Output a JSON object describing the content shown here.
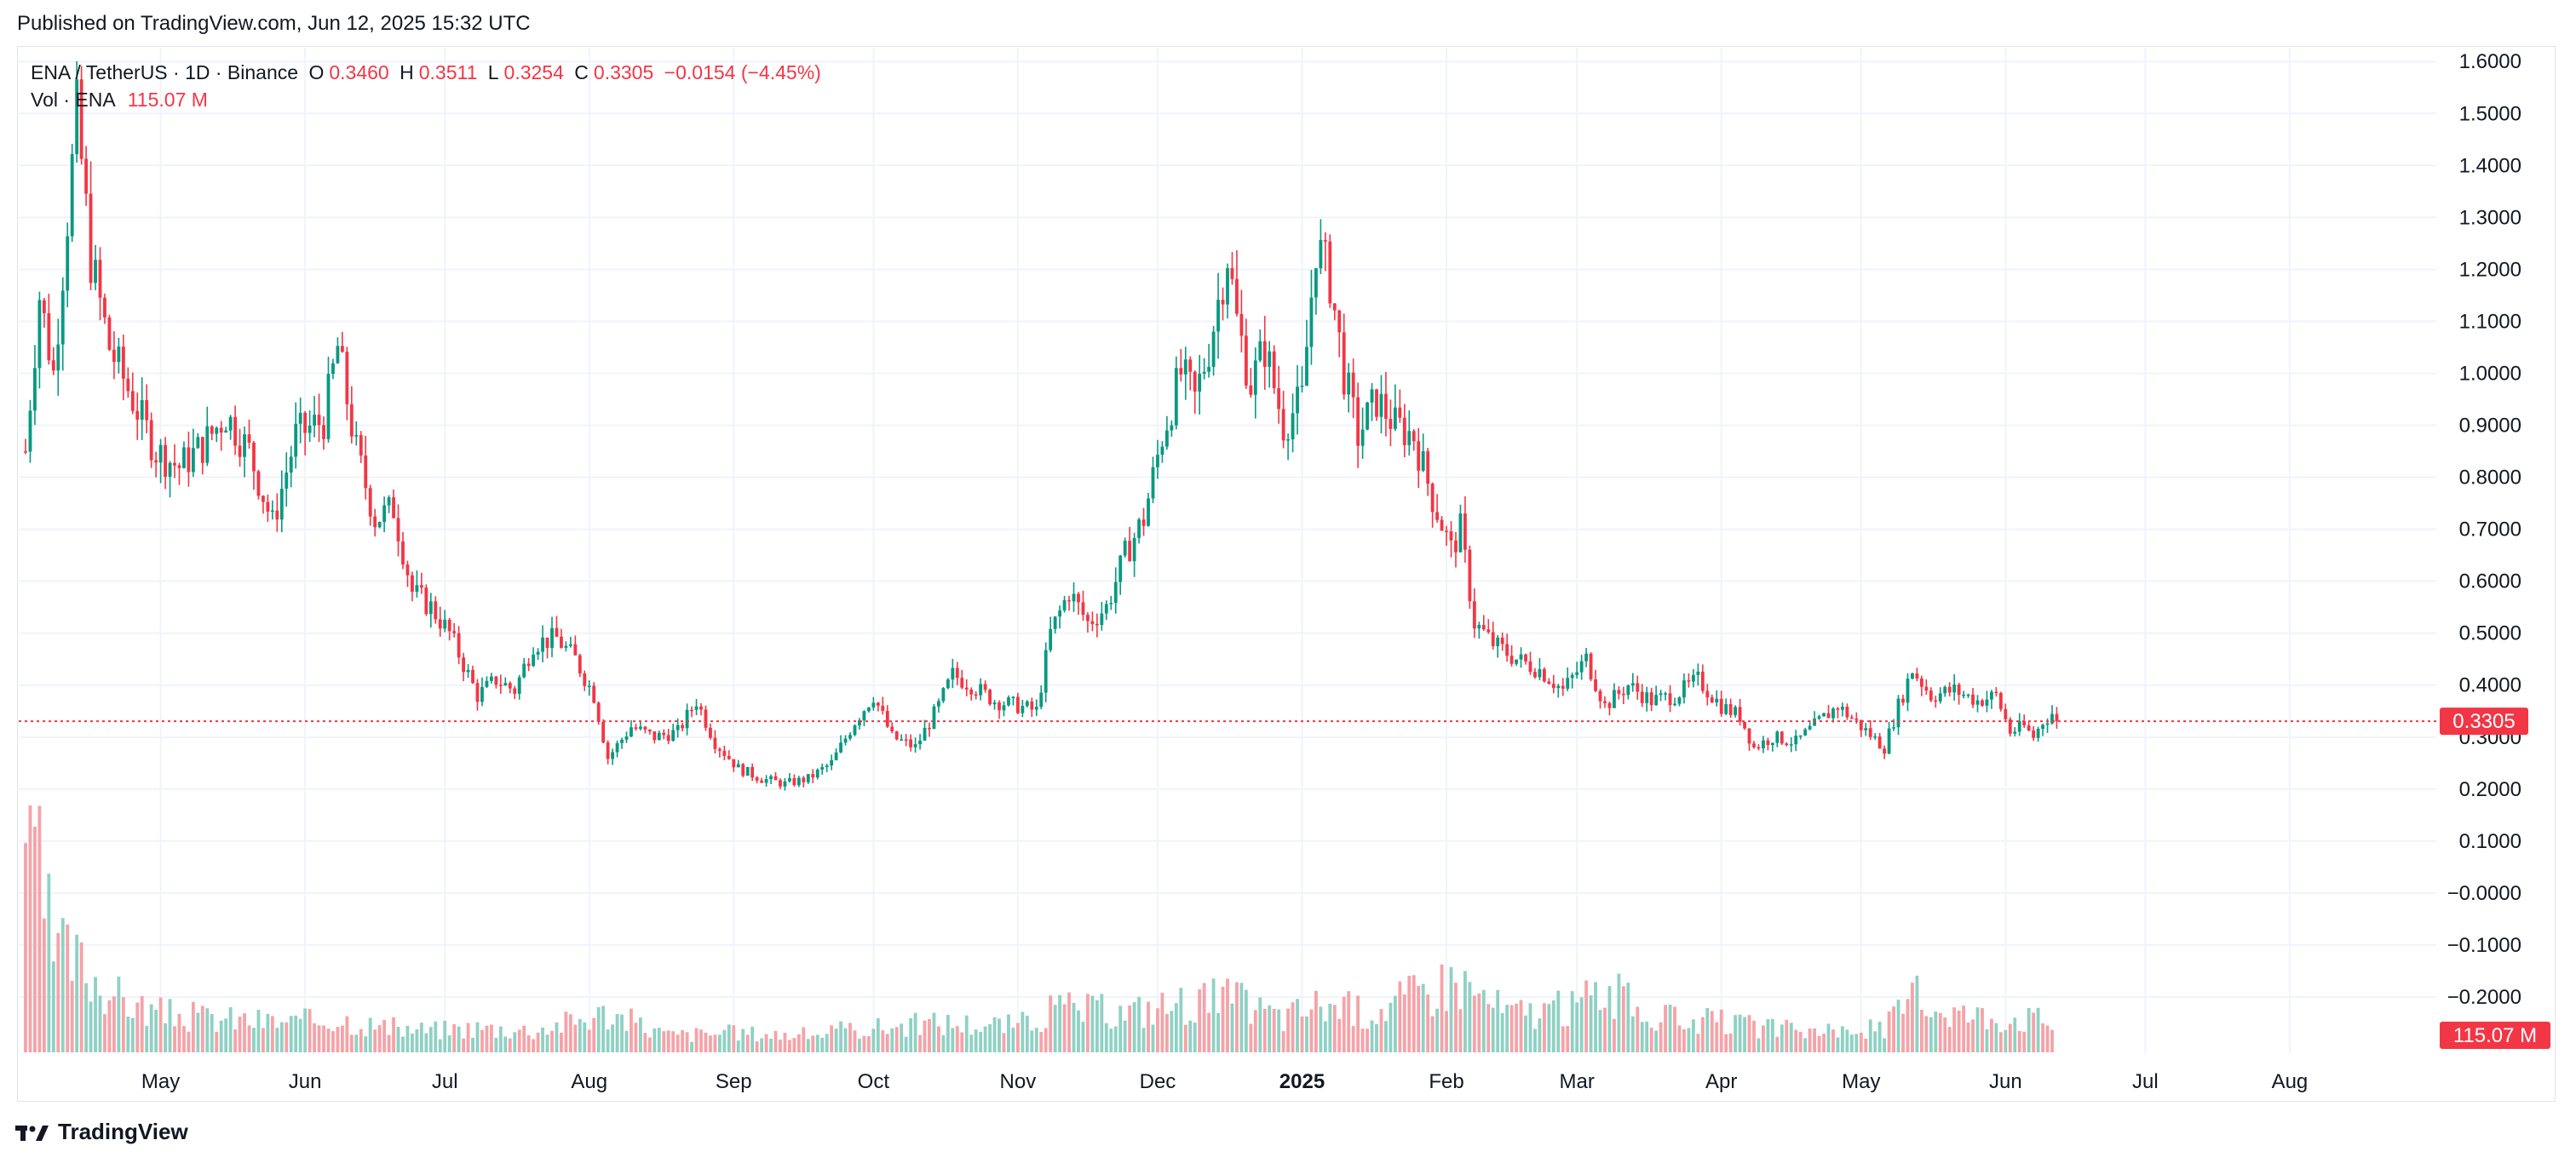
{
  "header": {
    "published": "Published on TradingView.com, Jun 12, 2025 15:32 UTC"
  },
  "legend": {
    "symbol": "ENA / TetherUS · 1D · Binance",
    "o_label": "O",
    "o_value": "0.3460",
    "h_label": "H",
    "h_value": "0.3511",
    "l_label": "L",
    "l_value": "0.3254",
    "c_label": "C",
    "c_value": "0.3305",
    "change": "−0.0154 (−4.45%)",
    "vol_label": "Vol · ENA",
    "vol_value": "115.07 M"
  },
  "brand": {
    "name": "TradingView",
    "logo_icon": "tradingview-logo-icon"
  },
  "colors": {
    "up": "#089981",
    "down": "#f23645",
    "grid": "#f0f3fa",
    "text": "#131722"
  },
  "chart_data": {
    "type": "candlestick",
    "symbol": "ENA / TetherUS",
    "interval": "1D",
    "exchange": "Binance",
    "last_price": 0.3305,
    "last_price_label": "0.3305",
    "last_volume_label": "115.07 M",
    "y_ticks": [
      "1.6000",
      "1.5000",
      "1.4000",
      "1.3000",
      "1.2000",
      "1.1000",
      "1.0000",
      "0.9000",
      "0.8000",
      "0.7000",
      "0.6000",
      "0.5000",
      "0.4000",
      "0.3000",
      "0.2000",
      "0.1000",
      "−0.0000",
      "−0.1000",
      "−0.2000"
    ],
    "y_tick_values": [
      1.6,
      1.5,
      1.4,
      1.3,
      1.2,
      1.1,
      1.0,
      0.9,
      0.8,
      0.7,
      0.6,
      0.5,
      0.4,
      0.3,
      0.2,
      0.1,
      0.0,
      -0.1,
      -0.2
    ],
    "x_ticks": [
      "May",
      "Jun",
      "Jul",
      "Aug",
      "Sep",
      "Oct",
      "Nov",
      "Dec",
      "2025",
      "Feb",
      "Mar",
      "Apr",
      "May",
      "Jun",
      "Jul",
      "Aug"
    ],
    "x_tick_dates": [
      "2024-05-01",
      "2024-06-01",
      "2024-07-01",
      "2024-08-01",
      "2024-09-01",
      "2024-10-01",
      "2024-11-01",
      "2024-12-01",
      "2025-01-01",
      "2025-02-01",
      "2025-03-01",
      "2025-04-01",
      "2025-05-01",
      "2025-06-01",
      "2025-07-01",
      "2025-08-01"
    ],
    "x_range": [
      "2024-04-02",
      "2025-08-31"
    ],
    "y_range": [
      -0.3,
      1.62
    ],
    "close_series": [
      [
        "2024-04-02",
        0.85
      ],
      [
        "2024-04-05",
        1.15
      ],
      [
        "2024-04-08",
        1.0
      ],
      [
        "2024-04-11",
        1.3
      ],
      [
        "2024-04-13",
        1.5
      ],
      [
        "2024-04-16",
        1.22
      ],
      [
        "2024-04-20",
        1.05
      ],
      [
        "2024-04-25",
        0.95
      ],
      [
        "2024-04-30",
        0.85
      ],
      [
        "2024-05-05",
        0.82
      ],
      [
        "2024-05-10",
        0.86
      ],
      [
        "2024-05-15",
        0.92
      ],
      [
        "2024-05-20",
        0.85
      ],
      [
        "2024-05-25",
        0.71
      ],
      [
        "2024-05-30",
        0.88
      ],
      [
        "2024-06-05",
        0.91
      ],
      [
        "2024-06-08",
        1.05
      ],
      [
        "2024-06-12",
        0.85
      ],
      [
        "2024-06-16",
        0.72
      ],
      [
        "2024-06-20",
        0.74
      ],
      [
        "2024-06-24",
        0.58
      ],
      [
        "2024-06-28",
        0.55
      ],
      [
        "2024-07-02",
        0.5
      ],
      [
        "2024-07-05",
        0.44
      ],
      [
        "2024-07-08",
        0.38
      ],
      [
        "2024-07-12",
        0.41
      ],
      [
        "2024-07-16",
        0.39
      ],
      [
        "2024-07-20",
        0.48
      ],
      [
        "2024-07-25",
        0.49
      ],
      [
        "2024-07-29",
        0.45
      ],
      [
        "2024-08-02",
        0.38
      ],
      [
        "2024-08-05",
        0.26
      ],
      [
        "2024-08-10",
        0.32
      ],
      [
        "2024-08-15",
        0.3
      ],
      [
        "2024-08-20",
        0.31
      ],
      [
        "2024-08-24",
        0.37
      ],
      [
        "2024-08-28",
        0.29
      ],
      [
        "2024-09-02",
        0.24
      ],
      [
        "2024-09-07",
        0.22
      ],
      [
        "2024-09-12",
        0.21
      ],
      [
        "2024-09-17",
        0.22
      ],
      [
        "2024-09-22",
        0.25
      ],
      [
        "2024-09-27",
        0.33
      ],
      [
        "2024-10-01",
        0.38
      ],
      [
        "2024-10-05",
        0.3
      ],
      [
        "2024-10-10",
        0.28
      ],
      [
        "2024-10-15",
        0.36
      ],
      [
        "2024-10-18",
        0.42
      ],
      [
        "2024-10-22",
        0.4
      ],
      [
        "2024-10-27",
        0.37
      ],
      [
        "2024-11-01",
        0.36
      ],
      [
        "2024-11-05",
        0.35
      ],
      [
        "2024-11-08",
        0.5
      ],
      [
        "2024-11-12",
        0.58
      ],
      [
        "2024-11-16",
        0.52
      ],
      [
        "2024-11-20",
        0.55
      ],
      [
        "2024-11-24",
        0.65
      ],
      [
        "2024-11-28",
        0.72
      ],
      [
        "2024-12-02",
        0.88
      ],
      [
        "2024-12-06",
        1.0
      ],
      [
        "2024-12-09",
        0.95
      ],
      [
        "2024-12-12",
        1.05
      ],
      [
        "2024-12-16",
        1.23
      ],
      [
        "2024-12-18",
        1.1
      ],
      [
        "2024-12-21",
        0.98
      ],
      [
        "2024-12-24",
        1.05
      ],
      [
        "2024-12-28",
        0.9
      ],
      [
        "2025-01-01",
        0.95
      ],
      [
        "2025-01-04",
        1.25
      ],
      [
        "2025-01-07",
        1.18
      ],
      [
        "2025-01-10",
        1.0
      ],
      [
        "2025-01-13",
        0.88
      ],
      [
        "2025-01-17",
        0.95
      ],
      [
        "2025-01-21",
        0.9
      ],
      [
        "2025-01-25",
        0.88
      ],
      [
        "2025-01-29",
        0.76
      ],
      [
        "2025-02-02",
        0.66
      ],
      [
        "2025-02-04",
        0.7
      ],
      [
        "2025-02-07",
        0.52
      ],
      [
        "2025-02-11",
        0.48
      ],
      [
        "2025-02-16",
        0.45
      ],
      [
        "2025-02-21",
        0.43
      ],
      [
        "2025-02-26",
        0.39
      ],
      [
        "2025-03-03",
        0.45
      ],
      [
        "2025-03-07",
        0.36
      ],
      [
        "2025-03-12",
        0.4
      ],
      [
        "2025-03-17",
        0.37
      ],
      [
        "2025-03-22",
        0.38
      ],
      [
        "2025-03-27",
        0.41
      ],
      [
        "2025-04-01",
        0.36
      ],
      [
        "2025-04-05",
        0.34
      ],
      [
        "2025-04-08",
        0.28
      ],
      [
        "2025-04-12",
        0.3
      ],
      [
        "2025-04-17",
        0.29
      ],
      [
        "2025-04-22",
        0.33
      ],
      [
        "2025-04-26",
        0.36
      ],
      [
        "2025-05-01",
        0.32
      ],
      [
        "2025-05-06",
        0.28
      ],
      [
        "2025-05-09",
        0.36
      ],
      [
        "2025-05-12",
        0.43
      ],
      [
        "2025-05-16",
        0.38
      ],
      [
        "2025-05-21",
        0.39
      ],
      [
        "2025-05-26",
        0.37
      ],
      [
        "2025-05-30",
        0.38
      ],
      [
        "2025-06-02",
        0.31
      ],
      [
        "2025-06-05",
        0.32
      ],
      [
        "2025-06-07",
        0.3
      ],
      [
        "2025-06-09",
        0.33
      ],
      [
        "2025-06-11",
        0.346
      ],
      [
        "2025-06-12",
        0.3305
      ]
    ],
    "volume_series": [
      [
        "2024-04-02",
        1.0
      ],
      [
        "2024-04-04",
        0.8
      ],
      [
        "2024-04-08",
        0.42
      ],
      [
        "2024-04-12",
        0.38
      ],
      [
        "2024-04-16",
        0.32
      ],
      [
        "2024-04-22",
        0.22
      ],
      [
        "2024-04-30",
        0.16
      ],
      [
        "2024-05-10",
        0.14
      ],
      [
        "2024-05-20",
        0.13
      ],
      [
        "2024-05-30",
        0.12
      ],
      [
        "2024-06-08",
        0.14
      ],
      [
        "2024-06-18",
        0.1
      ],
      [
        "2024-06-28",
        0.09
      ],
      [
        "2024-07-08",
        0.1
      ],
      [
        "2024-07-20",
        0.09
      ],
      [
        "2024-08-05",
        0.16
      ],
      [
        "2024-08-18",
        0.07
      ],
      [
        "2024-09-01",
        0.08
      ],
      [
        "2024-09-15",
        0.07
      ],
      [
        "2024-10-01",
        0.1
      ],
      [
        "2024-10-15",
        0.12
      ],
      [
        "2024-11-01",
        0.11
      ],
      [
        "2024-11-10",
        0.18
      ],
      [
        "2024-11-24",
        0.16
      ],
      [
        "2024-12-06",
        0.2
      ],
      [
        "2024-12-16",
        0.22
      ],
      [
        "2024-12-28",
        0.14
      ],
      [
        "2025-01-05",
        0.2
      ],
      [
        "2025-01-15",
        0.16
      ],
      [
        "2025-01-26",
        0.24
      ],
      [
        "2025-02-03",
        0.3
      ],
      [
        "2025-02-14",
        0.16
      ],
      [
        "2025-02-28",
        0.18
      ],
      [
        "2025-03-06",
        0.26
      ],
      [
        "2025-03-18",
        0.14
      ],
      [
        "2025-04-01",
        0.12
      ],
      [
        "2025-04-10",
        0.1
      ],
      [
        "2025-04-24",
        0.08
      ],
      [
        "2025-05-06",
        0.1
      ],
      [
        "2025-05-12",
        0.22
      ],
      [
        "2025-05-24",
        0.15
      ],
      [
        "2025-06-05",
        0.14
      ],
      [
        "2025-06-12",
        0.12
      ]
    ]
  }
}
